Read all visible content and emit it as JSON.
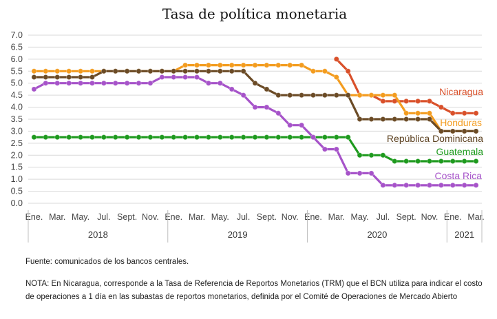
{
  "chart_data": {
    "type": "line",
    "title": "Tasa de política monetaria",
    "ylim": [
      0,
      7
    ],
    "ytick_step": 0.5,
    "ytick_labels": [
      "0.0",
      "0.5",
      "1.0",
      "1.5",
      "2.0",
      "2.5",
      "3.0",
      "3.5",
      "4.0",
      "4.5",
      "5.0",
      "5.5",
      "6.0",
      "6.5",
      "7.0"
    ],
    "x_tick_labels": [
      "Ene.",
      "Mar.",
      "May.",
      "Jul.",
      "Sept.",
      "Nov.",
      "Ene.",
      "Mar.",
      "May.",
      "Jul.",
      "Sept.",
      "Nov.",
      "Ene.",
      "Mar.",
      "May.",
      "Jul.",
      "Sept.",
      "Nov.",
      "Ene.",
      "Mar."
    ],
    "years": [
      "2018",
      "2019",
      "2020",
      "2021"
    ],
    "x_start": "2018-01",
    "x_end": "2021-03",
    "grid": true,
    "series": [
      {
        "name": "Nicaragua",
        "color": "#d9502a",
        "values": [
          null,
          null,
          null,
          null,
          null,
          null,
          null,
          null,
          null,
          null,
          null,
          null,
          null,
          null,
          null,
          null,
          null,
          null,
          null,
          null,
          null,
          null,
          null,
          null,
          null,
          null,
          6.0,
          5.5,
          4.5,
          4.5,
          4.25,
          4.25,
          4.25,
          4.25,
          4.25,
          4.0,
          3.75,
          3.75,
          3.75
        ]
      },
      {
        "name": "Honduras",
        "color": "#f39c1f",
        "values": [
          5.5,
          5.5,
          5.5,
          5.5,
          5.5,
          5.5,
          5.5,
          5.5,
          5.5,
          5.5,
          5.5,
          5.5,
          5.5,
          5.75,
          5.75,
          5.75,
          5.75,
          5.75,
          5.75,
          5.75,
          5.75,
          5.75,
          5.75,
          5.75,
          5.5,
          5.5,
          5.25,
          4.5,
          4.5,
          4.5,
          4.5,
          4.5,
          3.75,
          3.75,
          3.75,
          3.0,
          3.0,
          3.0,
          3.0
        ]
      },
      {
        "name": "República Dominicana",
        "color": "#6b4b26",
        "values": [
          5.25,
          5.25,
          5.25,
          5.25,
          5.25,
          5.25,
          5.5,
          5.5,
          5.5,
          5.5,
          5.5,
          5.5,
          5.5,
          5.5,
          5.5,
          5.5,
          5.5,
          5.5,
          5.5,
          5.0,
          4.75,
          4.5,
          4.5,
          4.5,
          4.5,
          4.5,
          4.5,
          4.5,
          3.5,
          3.5,
          3.5,
          3.5,
          3.5,
          3.5,
          3.5,
          3.0,
          3.0,
          3.0,
          3.0
        ]
      },
      {
        "name": "Guatemala",
        "color": "#1e9a1e",
        "values": [
          2.75,
          2.75,
          2.75,
          2.75,
          2.75,
          2.75,
          2.75,
          2.75,
          2.75,
          2.75,
          2.75,
          2.75,
          2.75,
          2.75,
          2.75,
          2.75,
          2.75,
          2.75,
          2.75,
          2.75,
          2.75,
          2.75,
          2.75,
          2.75,
          2.75,
          2.75,
          2.75,
          2.75,
          2.0,
          2.0,
          2.0,
          1.75,
          1.75,
          1.75,
          1.75,
          1.75,
          1.75,
          1.75,
          1.75
        ]
      },
      {
        "name": "Costa Rica",
        "color": "#a653c9",
        "values": [
          4.75,
          5.0,
          5.0,
          5.0,
          5.0,
          5.0,
          5.0,
          5.0,
          5.0,
          5.0,
          5.0,
          5.25,
          5.25,
          5.25,
          5.25,
          5.0,
          5.0,
          4.75,
          4.5,
          4.0,
          4.0,
          3.75,
          3.25,
          3.25,
          2.75,
          2.25,
          2.25,
          1.25,
          1.25,
          1.25,
          0.75,
          0.75,
          0.75,
          0.75,
          0.75,
          0.75,
          0.75,
          0.75,
          0.75
        ]
      }
    ]
  },
  "source": "Fuente: comunicados de los bancos centrales.",
  "note": "NOTA: En Nicaragua, corresponde a la Tasa de Referencia de Reportos Monetarios (TRM) que el BCN utiliza para indicar el costo de operaciones a 1 día en las subastas de reportos monetarios, definida por el Comité de Operaciones de Mercado Abierto"
}
